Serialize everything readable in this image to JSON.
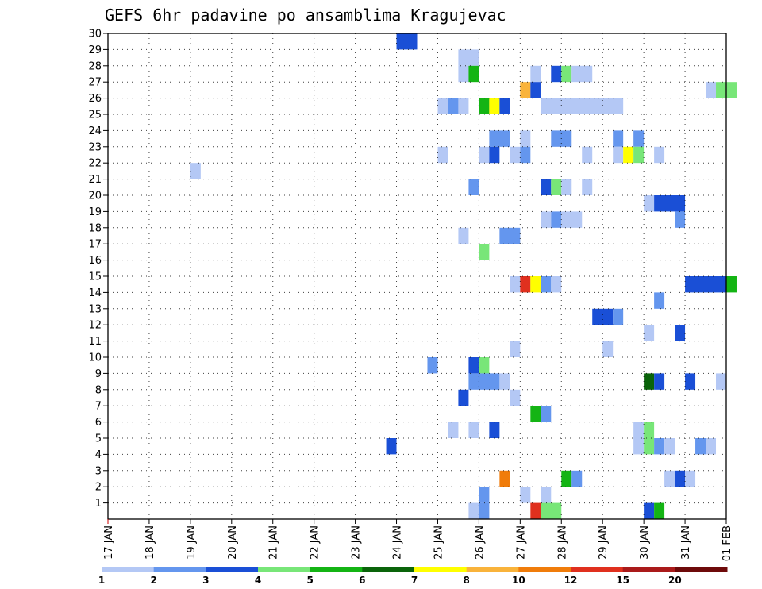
{
  "chart_data": {
    "type": "heatmap",
    "title": "GEFS 6hr padavine po ansamblima Kragujevac",
    "xlabel": "",
    "ylabel": "",
    "x_tick_labels": [
      "17 JAN",
      "18 JAN",
      "19 JAN",
      "20 JAN",
      "21 JAN",
      "22 JAN",
      "23 JAN",
      "24 JAN",
      "25 JAN",
      "26 JAN",
      "27 JAN",
      "28 JAN",
      "29 JAN",
      "30 JAN",
      "31 JAN",
      "01 FEB"
    ],
    "x_range_steps": [
      0,
      60
    ],
    "steps_per_day": 4,
    "y_tick_labels": [
      "1",
      "2",
      "3",
      "4",
      "5",
      "6",
      "7",
      "8",
      "9",
      "10",
      "11",
      "12",
      "13",
      "14",
      "15",
      "16",
      "17",
      "18",
      "19",
      "20",
      "21",
      "22",
      "23",
      "24",
      "25",
      "26",
      "27",
      "28",
      "29",
      "30"
    ],
    "y_range": [
      0,
      30
    ],
    "grid": true,
    "colorbar": {
      "labels": [
        "1",
        "2",
        "3",
        "4",
        "5",
        "6",
        "7",
        "8",
        "10",
        "12",
        "15",
        "20"
      ],
      "colors": [
        "#b4c8f5",
        "#6496ee",
        "#1a4fd6",
        "#78e678",
        "#14b414",
        "#0a640a",
        "#ffff00",
        "#f9b33b",
        "#f07c0a",
        "#e0301e",
        "#aa1a1a",
        "#6e0a0a"
      ]
    },
    "cells_format": "[member, step_start, step_count, color_index]",
    "cells": [
      [
        30,
        28,
        2,
        2
      ],
      [
        29,
        34,
        2,
        0
      ],
      [
        28,
        34,
        1,
        0
      ],
      [
        28,
        35,
        1,
        4
      ],
      [
        28,
        41,
        1,
        0
      ],
      [
        28,
        43,
        1,
        2
      ],
      [
        28,
        44,
        1,
        3
      ],
      [
        28,
        45,
        2,
        0
      ],
      [
        27,
        40,
        1,
        7
      ],
      [
        27,
        41,
        1,
        2
      ],
      [
        27,
        58,
        1,
        0
      ],
      [
        27,
        59,
        2,
        3
      ],
      [
        26,
        32,
        1,
        0
      ],
      [
        26,
        33,
        1,
        1
      ],
      [
        26,
        34,
        1,
        0
      ],
      [
        26,
        36,
        1,
        4
      ],
      [
        26,
        37,
        1,
        6
      ],
      [
        26,
        38,
        1,
        2
      ],
      [
        26,
        42,
        8,
        0
      ],
      [
        24,
        37,
        2,
        1
      ],
      [
        24,
        40,
        1,
        0
      ],
      [
        24,
        43,
        2,
        1
      ],
      [
        24,
        49,
        1,
        1
      ],
      [
        24,
        51,
        1,
        1
      ],
      [
        23,
        32,
        1,
        0
      ],
      [
        23,
        36,
        1,
        0
      ],
      [
        23,
        37,
        1,
        2
      ],
      [
        23,
        39,
        1,
        0
      ],
      [
        23,
        40,
        1,
        1
      ],
      [
        23,
        46,
        1,
        0
      ],
      [
        23,
        49,
        1,
        0
      ],
      [
        23,
        50,
        1,
        6
      ],
      [
        23,
        51,
        1,
        3
      ],
      [
        23,
        53,
        1,
        0
      ],
      [
        22,
        8,
        1,
        0
      ],
      [
        21,
        35,
        1,
        1
      ],
      [
        21,
        42,
        1,
        2
      ],
      [
        21,
        43,
        1,
        3
      ],
      [
        21,
        44,
        1,
        0
      ],
      [
        21,
        46,
        1,
        0
      ],
      [
        20,
        52,
        1,
        0
      ],
      [
        20,
        53,
        3,
        2
      ],
      [
        19,
        42,
        1,
        0
      ],
      [
        19,
        43,
        1,
        1
      ],
      [
        19,
        44,
        2,
        0
      ],
      [
        19,
        55,
        1,
        1
      ],
      [
        18,
        34,
        1,
        0
      ],
      [
        18,
        38,
        2,
        1
      ],
      [
        17,
        36,
        1,
        3
      ],
      [
        15,
        39,
        1,
        0
      ],
      [
        15,
        40,
        1,
        9
      ],
      [
        15,
        41,
        1,
        6
      ],
      [
        15,
        42,
        1,
        1
      ],
      [
        15,
        43,
        1,
        0
      ],
      [
        15,
        56,
        4,
        2
      ],
      [
        15,
        60,
        1,
        4
      ],
      [
        14,
        53,
        1,
        1
      ],
      [
        13,
        47,
        2,
        2
      ],
      [
        13,
        49,
        1,
        1
      ],
      [
        12,
        52,
        1,
        0
      ],
      [
        12,
        55,
        1,
        2
      ],
      [
        11,
        39,
        1,
        0
      ],
      [
        11,
        48,
        1,
        0
      ],
      [
        10,
        31,
        1,
        1
      ],
      [
        10,
        35,
        1,
        2
      ],
      [
        10,
        36,
        1,
        3
      ],
      [
        9,
        35,
        3,
        1
      ],
      [
        9,
        38,
        1,
        0
      ],
      [
        9,
        52,
        1,
        5
      ],
      [
        9,
        53,
        1,
        2
      ],
      [
        9,
        56,
        1,
        2
      ],
      [
        9,
        59,
        1,
        0
      ],
      [
        8,
        34,
        1,
        2
      ],
      [
        8,
        39,
        1,
        0
      ],
      [
        7,
        41,
        1,
        4
      ],
      [
        7,
        42,
        1,
        1
      ],
      [
        6,
        33,
        1,
        0
      ],
      [
        6,
        35,
        1,
        0
      ],
      [
        6,
        37,
        1,
        2
      ],
      [
        6,
        51,
        1,
        0
      ],
      [
        6,
        52,
        1,
        3
      ],
      [
        5,
        27,
        1,
        2
      ],
      [
        5,
        51,
        1,
        0
      ],
      [
        5,
        52,
        1,
        3
      ],
      [
        5,
        53,
        1,
        1
      ],
      [
        5,
        54,
        1,
        0
      ],
      [
        5,
        57,
        1,
        1
      ],
      [
        5,
        58,
        1,
        0
      ],
      [
        3,
        38,
        1,
        8
      ],
      [
        3,
        44,
        1,
        4
      ],
      [
        3,
        45,
        1,
        1
      ],
      [
        3,
        54,
        1,
        0
      ],
      [
        3,
        55,
        1,
        2
      ],
      [
        3,
        56,
        1,
        0
      ],
      [
        2,
        36,
        1,
        1
      ],
      [
        2,
        40,
        1,
        0
      ],
      [
        2,
        42,
        1,
        0
      ],
      [
        1,
        35,
        1,
        0
      ],
      [
        1,
        36,
        1,
        1
      ],
      [
        1,
        41,
        1,
        9
      ],
      [
        1,
        42,
        2,
        3
      ],
      [
        1,
        52,
        1,
        2
      ],
      [
        1,
        53,
        1,
        4
      ]
    ]
  }
}
